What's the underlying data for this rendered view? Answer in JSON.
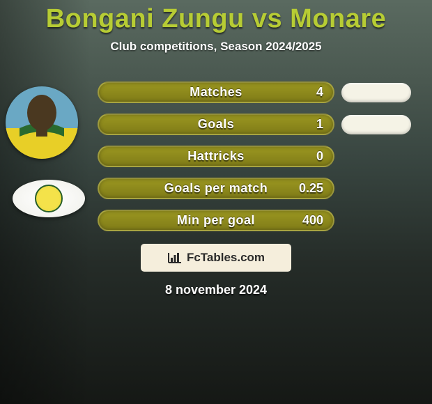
{
  "title": {
    "text": "Bongani Zungu vs Monare",
    "color": "#b7cc34"
  },
  "subtitle": "Club competitions, Season 2024/2025",
  "pill_color_main": "#9a9620",
  "pill_color_main_edge": "#807c18",
  "pill_color_right": "#f5f3e6",
  "stats": [
    {
      "label": "Matches",
      "value": "4",
      "has_right": true
    },
    {
      "label": "Goals",
      "value": "1",
      "has_right": true
    },
    {
      "label": "Hattricks",
      "value": "0",
      "has_right": false
    },
    {
      "label": "Goals per match",
      "value": "0.25",
      "has_right": false
    },
    {
      "label": "Min per goal",
      "value": "400",
      "has_right": false
    }
  ],
  "avatar": {
    "sky": "#6aa8c4",
    "shirt": "#e8cf27",
    "collar": "#2a6a2e",
    "skin": "#4a3820"
  },
  "badge": {
    "ring": "#29602a",
    "fill": "#f4e24a"
  },
  "attribution": {
    "bg": "#f5eedc",
    "text": "FcTables.com",
    "text_color": "#2a2a2a",
    "icon_color": "#2a2a2a"
  },
  "date": "8 november 2024"
}
